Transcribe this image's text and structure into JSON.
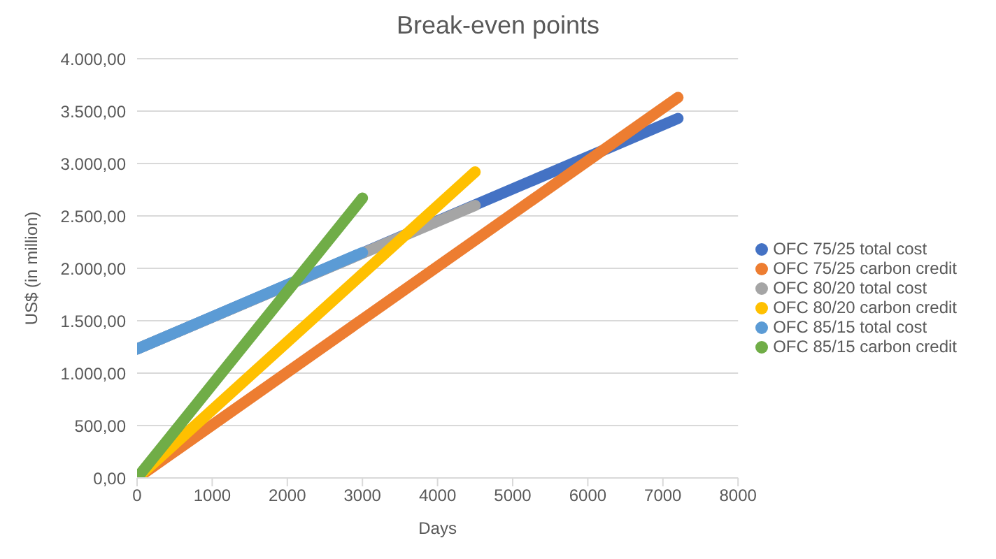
{
  "chart_data": {
    "type": "line",
    "title": "Break-even points",
    "xlabel": "Days",
    "ylabel": "US$ (in million)",
    "xlim": [
      0,
      8000
    ],
    "xticks": [
      0,
      1000,
      2000,
      3000,
      4000,
      5000,
      6000,
      7000,
      8000
    ],
    "ylim": [
      0,
      4000
    ],
    "yticks": [
      {
        "value": 0,
        "label": "0,00"
      },
      {
        "value": 500,
        "label": "500,00"
      },
      {
        "value": 1000,
        "label": "1.000,00"
      },
      {
        "value": 1500,
        "label": "1.500,00"
      },
      {
        "value": 2000,
        "label": "2.000,00"
      },
      {
        "value": 2500,
        "label": "2.500,00"
      },
      {
        "value": 3000,
        "label": "3.000,00"
      },
      {
        "value": 3500,
        "label": "3.500,00"
      },
      {
        "value": 4000,
        "label": "4.000,00"
      }
    ],
    "grid": "y",
    "legend": "right",
    "marker": "none",
    "line_style": "solid",
    "series": [
      {
        "name": "OFC 75/25 total cost",
        "color": "#4472c4",
        "x": [
          0,
          7200
        ],
        "values": [
          1230,
          3430
        ]
      },
      {
        "name": "OFC 75/25 carbon credit",
        "color": "#ed7d31",
        "x": [
          0,
          7200
        ],
        "values": [
          0,
          3630
        ]
      },
      {
        "name": "OFC 80/20 total cost",
        "color": "#a5a5a5",
        "x": [
          0,
          4500
        ],
        "values": [
          1230,
          2600
        ]
      },
      {
        "name": "OFC 80/20 carbon credit",
        "color": "#ffc000",
        "x": [
          0,
          4500
        ],
        "values": [
          0,
          2920
        ]
      },
      {
        "name": "OFC 85/15 total cost",
        "color": "#5b9bd5",
        "x": [
          0,
          3000
        ],
        "values": [
          1230,
          2150
        ]
      },
      {
        "name": "OFC 85/15 carbon credit",
        "color": "#70ad47",
        "x": [
          0,
          3000
        ],
        "values": [
          0,
          2670
        ]
      }
    ]
  }
}
